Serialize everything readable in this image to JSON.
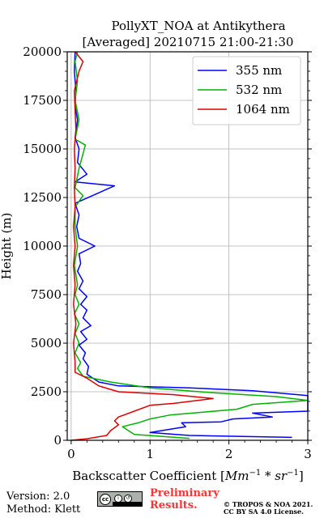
{
  "chart_data": {
    "type": "line",
    "title": "PollyXT_NOA at Antikythera",
    "subtitle": "[Averaged] 20210715 21:00-21:30",
    "xlabel": "Backscatter Coefficient [Mm⁻¹*sr⁻¹]",
    "ylabel": "Height (m)",
    "xlim": [
      -0.05,
      3
    ],
    "ylim": [
      0,
      20000
    ],
    "xticks": [
      0,
      1,
      2,
      3
    ],
    "yticks": [
      0,
      2500,
      5000,
      7500,
      10000,
      12500,
      15000,
      17500,
      20000
    ],
    "grid": true,
    "legend_position": "top-right",
    "series": [
      {
        "name": "355 nm",
        "color": "#0000ff",
        "points": [
          [
            2.8,
            150
          ],
          [
            1.5,
            250
          ],
          [
            1.0,
            400
          ],
          [
            1.45,
            700
          ],
          [
            1.4,
            900
          ],
          [
            1.9,
            950
          ],
          [
            2.05,
            1100
          ],
          [
            2.55,
            1200
          ],
          [
            2.3,
            1400
          ],
          [
            3.0,
            1500
          ],
          [
            3.0,
            2300
          ],
          [
            2.3,
            2550
          ],
          [
            1.5,
            2700
          ],
          [
            0.6,
            2800
          ],
          [
            0.35,
            3000
          ],
          [
            0.2,
            3400
          ],
          [
            0.22,
            3800
          ],
          [
            0.15,
            4200
          ],
          [
            0.18,
            4500
          ],
          [
            0.1,
            4900
          ],
          [
            0.2,
            5200
          ],
          [
            0.12,
            5600
          ],
          [
            0.25,
            5900
          ],
          [
            0.15,
            6300
          ],
          [
            0.2,
            6700
          ],
          [
            0.12,
            7000
          ],
          [
            0.2,
            7400
          ],
          [
            0.1,
            7800
          ],
          [
            0.15,
            8200
          ],
          [
            0.08,
            8700
          ],
          [
            0.12,
            9100
          ],
          [
            0.1,
            9600
          ],
          [
            0.3,
            10000
          ],
          [
            0.1,
            10400
          ],
          [
            0.07,
            11000
          ],
          [
            0.1,
            11600
          ],
          [
            0.05,
            12200
          ],
          [
            0.55,
            13100
          ],
          [
            0.05,
            13300
          ],
          [
            0.2,
            13700
          ],
          [
            0.08,
            14300
          ],
          [
            0.1,
            15000
          ],
          [
            0.05,
            15600
          ],
          [
            0.08,
            16500
          ],
          [
            0.05,
            17200
          ],
          [
            0.06,
            18000
          ],
          [
            0.04,
            19000
          ],
          [
            0.05,
            20000
          ]
        ]
      },
      {
        "name": "532 nm",
        "color": "#00b300",
        "points": [
          [
            1.5,
            100
          ],
          [
            0.8,
            300
          ],
          [
            0.65,
            700
          ],
          [
            0.85,
            900
          ],
          [
            1.0,
            1100
          ],
          [
            1.25,
            1300
          ],
          [
            2.1,
            1600
          ],
          [
            2.3,
            1850
          ],
          [
            3.0,
            2050
          ],
          [
            2.6,
            2250
          ],
          [
            1.8,
            2450
          ],
          [
            1.0,
            2700
          ],
          [
            0.5,
            3000
          ],
          [
            0.15,
            3300
          ],
          [
            0.08,
            3700
          ],
          [
            0.12,
            4000
          ],
          [
            0.05,
            4500
          ],
          [
            0.1,
            5000
          ],
          [
            0.05,
            5500
          ],
          [
            0.1,
            6000
          ],
          [
            0.04,
            6500
          ],
          [
            0.1,
            7000
          ],
          [
            0.05,
            7500
          ],
          [
            0.08,
            8000
          ],
          [
            0.04,
            9000
          ],
          [
            0.08,
            10000
          ],
          [
            0.05,
            11000
          ],
          [
            0.05,
            12000
          ],
          [
            0.15,
            12600
          ],
          [
            0.05,
            13000
          ],
          [
            0.1,
            14000
          ],
          [
            0.18,
            15200
          ],
          [
            0.05,
            15500
          ],
          [
            0.1,
            16500
          ],
          [
            0.05,
            17500
          ],
          [
            0.08,
            18500
          ],
          [
            0.05,
            19500
          ],
          [
            0.08,
            20000
          ]
        ]
      },
      {
        "name": "1064 nm",
        "color": "#dd0000",
        "points": [
          [
            0.0,
            0
          ],
          [
            0.2,
            80
          ],
          [
            0.45,
            250
          ],
          [
            0.5,
            500
          ],
          [
            0.6,
            800
          ],
          [
            0.55,
            1000
          ],
          [
            0.6,
            1200
          ],
          [
            0.8,
            1500
          ],
          [
            1.0,
            1800
          ],
          [
            1.3,
            1900
          ],
          [
            1.8,
            2150
          ],
          [
            1.3,
            2350
          ],
          [
            0.6,
            2500
          ],
          [
            0.35,
            2800
          ],
          [
            0.2,
            3200
          ],
          [
            0.05,
            3500
          ],
          [
            0.05,
            4000
          ],
          [
            0.03,
            5000
          ],
          [
            0.06,
            6000
          ],
          [
            0.03,
            7000
          ],
          [
            0.05,
            8000
          ],
          [
            0.03,
            9000
          ],
          [
            0.05,
            10000
          ],
          [
            0.03,
            11000
          ],
          [
            0.05,
            12000
          ],
          [
            0.04,
            13000
          ],
          [
            0.05,
            14000
          ],
          [
            0.04,
            15000
          ],
          [
            0.06,
            16000
          ],
          [
            0.05,
            17000
          ],
          [
            0.04,
            18000
          ],
          [
            0.1,
            19000
          ],
          [
            0.15,
            19500
          ],
          [
            0.05,
            20000
          ]
        ]
      }
    ]
  },
  "footer": {
    "version": "Version: 2.0",
    "method": "Method: Klett",
    "preliminary_line1": "Preliminary",
    "preliminary_line2": "Results.",
    "copyright_line1": "© TROPOS & NOA 2021.",
    "copyright_line2": "CC BY SA 4.0 License.",
    "license_badge": "cc",
    "license_icons": [
      "by-icon",
      "sa-icon"
    ],
    "preliminary_color": "#ff3333"
  }
}
